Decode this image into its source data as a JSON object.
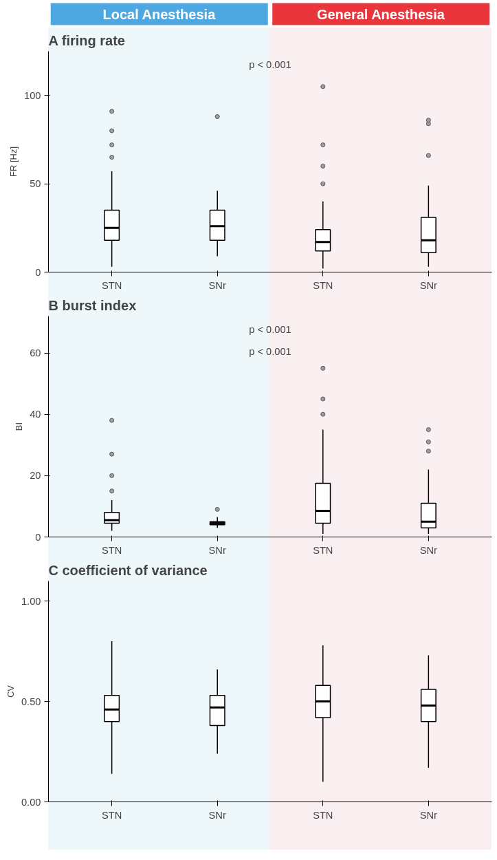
{
  "chart_data": [
    {
      "type": "other",
      "annotations": [
        "Local Anesthesia",
        "General Anesthesia"
      ]
    },
    {
      "type": "box",
      "title": "A firing rate",
      "ylabel": "FR [Hz]",
      "categories": [
        "STN",
        "SNr",
        "STN",
        "SNr"
      ],
      "ylim": [
        0,
        125
      ],
      "yticks": [
        0,
        50,
        100
      ],
      "grid": false,
      "annotations": [
        "p < 0.001"
      ],
      "boxes": [
        {
          "low": 3,
          "q1": 18,
          "median": 25,
          "q3": 35,
          "high": 57,
          "outliers": [
            65,
            72,
            80,
            91
          ]
        },
        {
          "low": 9,
          "q1": 18,
          "median": 26,
          "q3": 35,
          "high": 46,
          "outliers": [
            88
          ]
        },
        {
          "low": 2,
          "q1": 12,
          "median": 17,
          "q3": 24,
          "high": 40,
          "outliers": [
            50,
            60,
            72,
            105
          ]
        },
        {
          "low": 3,
          "q1": 11,
          "median": 18,
          "q3": 31,
          "high": 49,
          "outliers": [
            66,
            84,
            86
          ]
        }
      ]
    },
    {
      "type": "box",
      "title": "B burst index",
      "ylabel": "BI",
      "categories": [
        "STN",
        "SNr",
        "STN",
        "SNr"
      ],
      "ylim": [
        0,
        72
      ],
      "yticks": [
        0,
        20,
        40,
        60
      ],
      "grid": false,
      "annotations": [
        "p < 0.001",
        "p < 0.001"
      ],
      "boxes": [
        {
          "low": 2,
          "q1": 4.5,
          "median": 5.5,
          "q3": 8,
          "high": 12,
          "outliers": [
            15,
            20,
            27,
            38
          ]
        },
        {
          "low": 3,
          "q1": 4,
          "median": 4.5,
          "q3": 5,
          "high": 6.5,
          "outliers": [
            9
          ]
        },
        {
          "low": 1,
          "q1": 4.5,
          "median": 8.5,
          "q3": 17.5,
          "high": 35,
          "outliers": [
            40,
            45,
            55
          ]
        },
        {
          "low": 1,
          "q1": 3,
          "median": 5,
          "q3": 11,
          "high": 22,
          "outliers": [
            28,
            31,
            35
          ]
        }
      ]
    },
    {
      "type": "box",
      "title": "C coefficient of variance",
      "ylabel": "CV",
      "categories": [
        "STN",
        "SNr",
        "STN",
        "SNr"
      ],
      "ylim": [
        0,
        1.1
      ],
      "yticks": [
        {
          "value": 0,
          "label": "0.00"
        },
        {
          "value": 0.5,
          "label": "0.50"
        },
        {
          "value": 1,
          "label": "1.00"
        }
      ],
      "grid": false,
      "boxes": [
        {
          "low": 0.14,
          "q1": 0.4,
          "median": 0.46,
          "q3": 0.53,
          "high": 0.8
        },
        {
          "low": 0.24,
          "q1": 0.38,
          "median": 0.47,
          "q3": 0.53,
          "high": 0.66
        },
        {
          "low": 0.1,
          "q1": 0.42,
          "median": 0.5,
          "q3": 0.58,
          "high": 0.78
        },
        {
          "low": 0.17,
          "q1": 0.4,
          "median": 0.48,
          "q3": 0.56,
          "high": 0.73
        }
      ]
    }
  ]
}
